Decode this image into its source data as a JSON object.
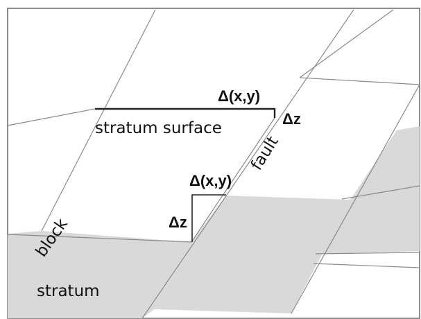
{
  "colors": {
    "stratum_fill": "#d9d9d9",
    "grid_line": "#8a8a8a",
    "step_line": "#222222"
  },
  "labels": {
    "displacement_top": "Δ(x,y)",
    "dz_top": "Δz",
    "stratum_surface": "stratum surface",
    "fault": "fault",
    "displacement_mid": "Δ(x,y)",
    "dz_mid": "Δz",
    "block": "block",
    "stratum": "stratum"
  }
}
